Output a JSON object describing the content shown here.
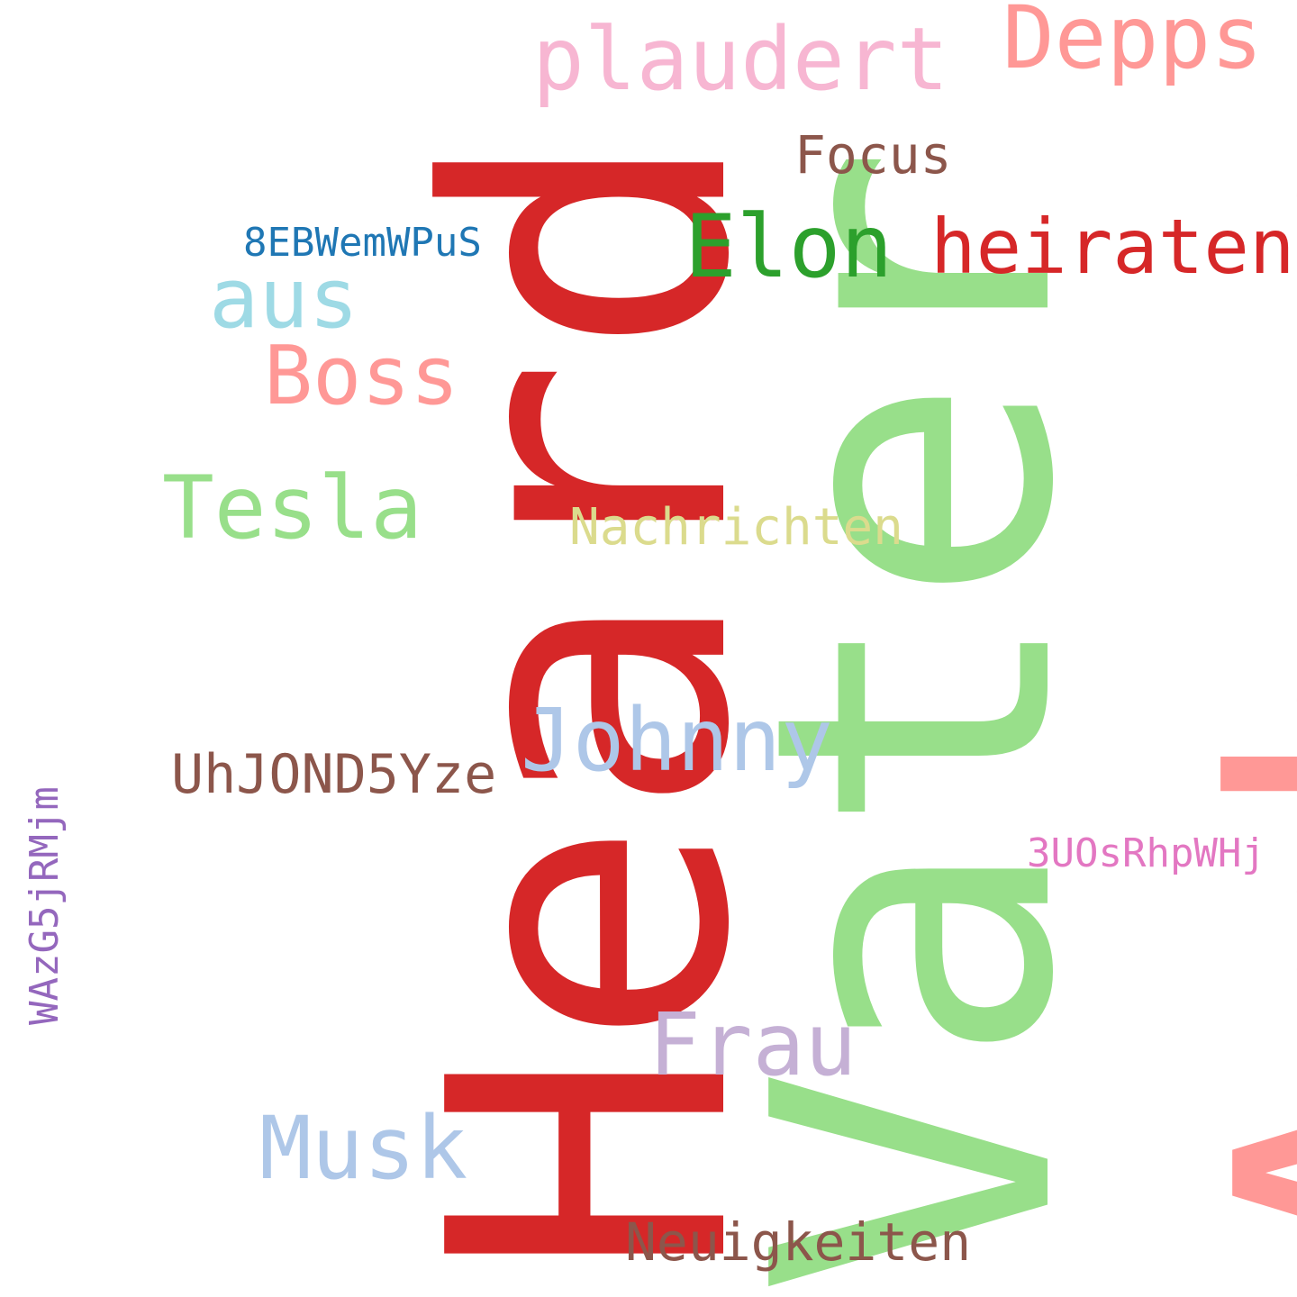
{
  "words": {
    "heard": {
      "text": "Heard",
      "color": "#d62728"
    },
    "vater": {
      "text": "Vater",
      "color": "#98df8a"
    },
    "amber": {
      "text": "Amber",
      "color": "#ff9896"
    },
    "plaudert": {
      "text": "plaudert",
      "color": "#f7b6d2"
    },
    "depps": {
      "text": "Depps",
      "color": "#ff9896"
    },
    "focus": {
      "text": "Focus",
      "color": "#8c564b"
    },
    "code_8eb": {
      "text": "8EBWemWPuS",
      "color": "#1f77b4"
    },
    "elon": {
      "text": "Elon",
      "color": "#2ca02c"
    },
    "heiraten": {
      "text": "heiraten",
      "color": "#d62728"
    },
    "aus": {
      "text": "aus",
      "color": "#9edae5"
    },
    "boss": {
      "text": "Boss",
      "color": "#ff9896"
    },
    "tesla": {
      "text": "Tesla",
      "color": "#98df8a"
    },
    "nachrichten": {
      "text": "Nachrichten",
      "color": "#dbdb8d"
    },
    "johnny": {
      "text": "Johnny",
      "color": "#aec7e8"
    },
    "code_uhjond": {
      "text": "UhJOND5Yze",
      "color": "#8c564b"
    },
    "code_3uos": {
      "text": "3UOsRhpWHj",
      "color": "#e377c2"
    },
    "frau": {
      "text": "Frau",
      "color": "#c5b0d5"
    },
    "musk": {
      "text": "Musk",
      "color": "#aec7e8"
    },
    "neuigkeiten": {
      "text": "Neuigkeiten",
      "color": "#8c564b"
    },
    "code_wazg": {
      "text": "WAzG5jRMjm",
      "color": "#9467bd"
    }
  }
}
